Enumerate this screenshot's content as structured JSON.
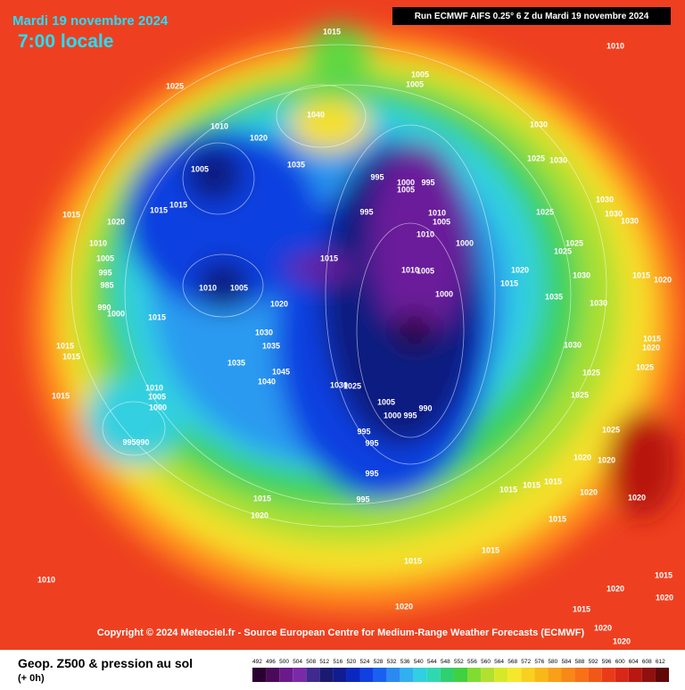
{
  "header": {
    "date": "Mardi 19 novembre 2024",
    "time": "7:00 locale",
    "run": "Run ECMWF AIFS 0.25° 6 Z du Mardi 19 novembre 2024"
  },
  "copyright": "Copyright © 2024 Meteociel.fr - Source European Centre for Medium-Range Weather Forecasts (ECMWF)",
  "legend": {
    "title": "Geop. Z500 & pression au sol",
    "step": "(+ 0h)",
    "scale": [
      492,
      496,
      500,
      504,
      508,
      512,
      516,
      520,
      524,
      528,
      532,
      536,
      540,
      544,
      548,
      552,
      556,
      560,
      564,
      568,
      572,
      576,
      580,
      584,
      588,
      592,
      596,
      600,
      604,
      608,
      612
    ],
    "colors": [
      "#2a0030",
      "#4a0a5a",
      "#6a1a8a",
      "#7a2aa8",
      "#402a90",
      "#1a1a70",
      "#101c90",
      "#0a28c0",
      "#1040e0",
      "#1a60f0",
      "#2a8af0",
      "#30b0f0",
      "#30d0e0",
      "#30d8b0",
      "#30d070",
      "#40d040",
      "#80dc30",
      "#b0e030",
      "#d8e828",
      "#f5e82a",
      "#f8d020",
      "#f8b818",
      "#f8a018",
      "#f88818",
      "#f87018",
      "#f05818",
      "#e83c18",
      "#d82818",
      "#b81810",
      "#901010",
      "#600808"
    ]
  },
  "pressure_labels": [
    1015,
    1010,
    1025,
    1005,
    1005,
    1040,
    1010,
    1020,
    1030,
    1005,
    1035,
    995,
    1000,
    995,
    1005,
    1025,
    1030,
    1015,
    1015,
    1015,
    1020,
    995,
    1010,
    1005,
    1010,
    1000,
    1025,
    1030,
    1030,
    1030,
    1010,
    1025,
    1025,
    1005,
    1015,
    1010,
    1005,
    995,
    1020,
    1015,
    1030,
    1015,
    1020,
    985,
    1010,
    1005,
    1000,
    1035,
    1030,
    990,
    1020,
    1000,
    1015,
    1030,
    1035,
    1015,
    1015,
    1035,
    1045,
    1040,
    1030,
    1025,
    1030,
    1015,
    1020,
    1025,
    1025,
    1015,
    1010,
    1005,
    1000,
    1005,
    995,
    990,
    1000,
    995,
    995,
    995,
    995,
    1025,
    1025,
    1020,
    1020,
    995,
    990,
    1015,
    1020,
    1015,
    1015,
    1015,
    1020,
    1020,
    1015,
    1015,
    1015,
    1010,
    1020,
    1020,
    1020,
    1015,
    1015,
    1020,
    1020
  ]
}
